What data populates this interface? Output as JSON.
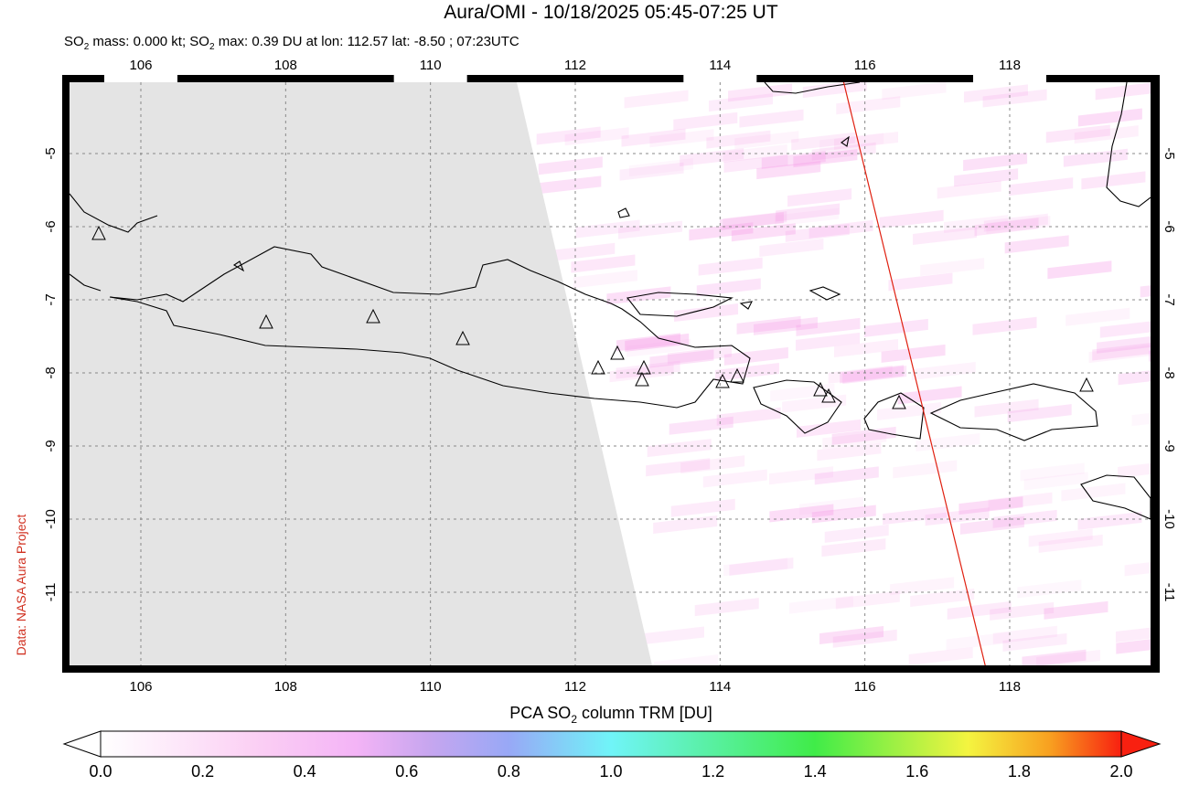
{
  "title": "Aura/OMI - 10/18/2025 05:45-07:25 UT",
  "subtitle": {
    "part1": "SO",
    "sub1": "2",
    "part2": " mass: 0.000 kt; SO",
    "sub2": "2",
    "part3": " max: 0.39 DU at lon: 112.57 lat: -8.50 ; 07:23UTC"
  },
  "credit": "Data: NASA Aura Project",
  "lon_ticks": [
    "106",
    "108",
    "110",
    "112",
    "114",
    "116",
    "118"
  ],
  "lat_ticks": [
    "-5",
    "-6",
    "-7",
    "-8",
    "-9",
    "-10",
    "-11"
  ],
  "colorbar": {
    "label_part1": "PCA SO",
    "label_sub": "2",
    "label_part2": " column TRM [DU]",
    "ticks": [
      "0.0",
      "0.2",
      "0.4",
      "0.6",
      "0.8",
      "1.0",
      "1.2",
      "1.4",
      "1.6",
      "1.8",
      "2.0"
    ]
  }
}
